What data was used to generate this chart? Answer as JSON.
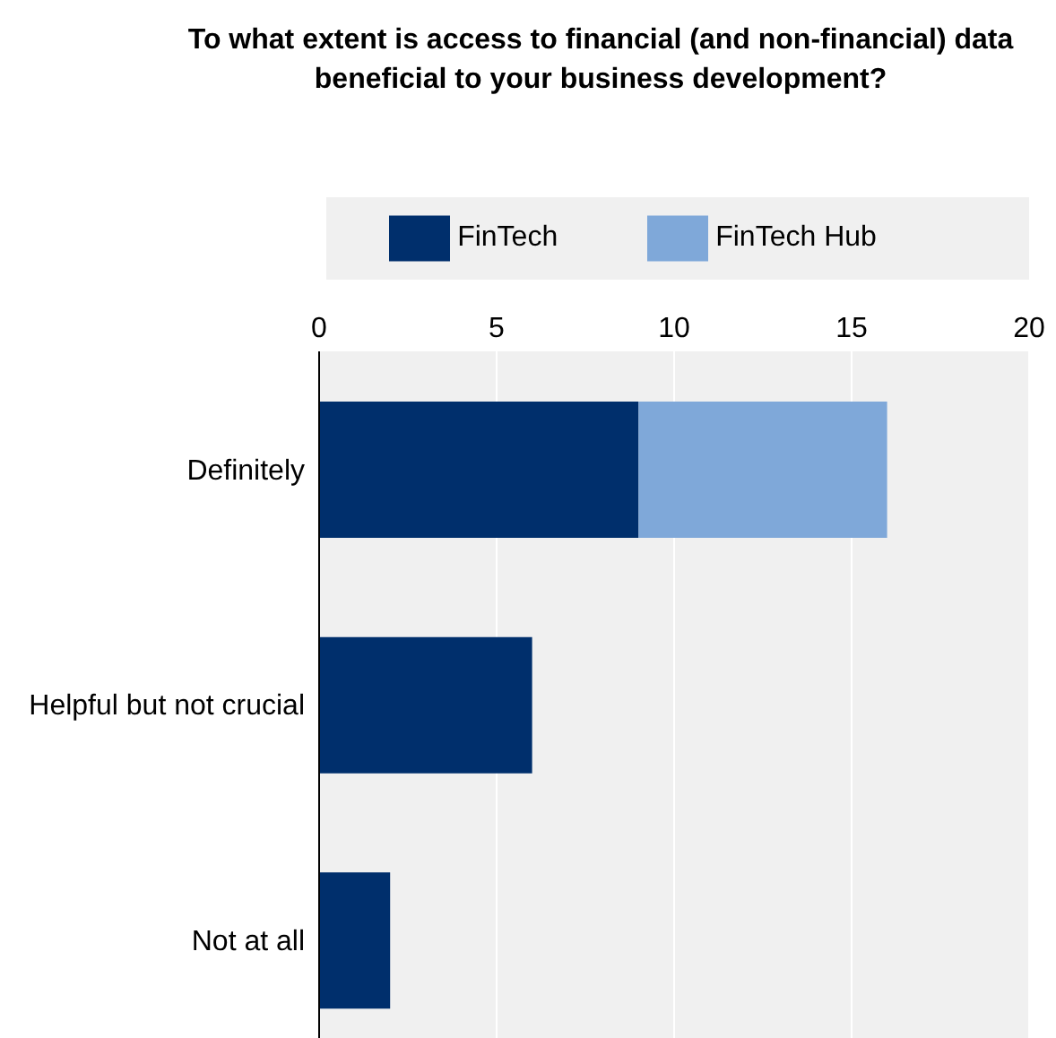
{
  "chart_data": {
    "type": "bar",
    "orientation": "horizontal",
    "stacked": true,
    "title": "To what extent is access to financial (and non-financial) data beneficial to your business development?",
    "categories": [
      "Definitely",
      "Helpful but not crucial",
      "Not at all"
    ],
    "series": [
      {
        "name": "FinTech",
        "color": "#002f6c",
        "values": [
          9,
          6,
          2
        ]
      },
      {
        "name": "FinTech Hub",
        "color": "#7fa8d9",
        "values": [
          7,
          0,
          0
        ]
      }
    ],
    "xlim": [
      0,
      20
    ],
    "xticks": [
      0,
      5,
      10,
      15,
      20
    ],
    "grid": "x",
    "legend": "top"
  }
}
